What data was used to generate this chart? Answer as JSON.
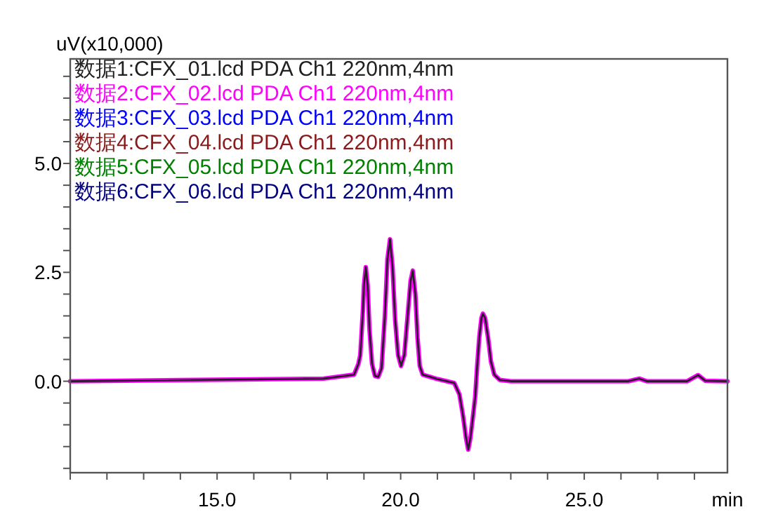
{
  "chart_data": {
    "type": "line",
    "ylabel": "uV(x10,000)",
    "xlabel": "min",
    "xlim": [
      11.0,
      28.9
    ],
    "ylim": [
      -2.1,
      7.4
    ],
    "xticks": [
      {
        "value": 11,
        "label": null
      },
      {
        "value": 12,
        "label": null
      },
      {
        "value": 13,
        "label": null
      },
      {
        "value": 14,
        "label": null
      },
      {
        "value": 15,
        "label": "15.0"
      },
      {
        "value": 16,
        "label": null
      },
      {
        "value": 17,
        "label": null
      },
      {
        "value": 18,
        "label": null
      },
      {
        "value": 19,
        "label": null
      },
      {
        "value": 20,
        "label": "20.0"
      },
      {
        "value": 21,
        "label": null
      },
      {
        "value": 22,
        "label": null
      },
      {
        "value": 23,
        "label": null
      },
      {
        "value": 24,
        "label": null
      },
      {
        "value": 25,
        "label": "25.0"
      },
      {
        "value": 26,
        "label": null
      },
      {
        "value": 27,
        "label": null
      },
      {
        "value": 28,
        "label": null
      }
    ],
    "yticks": [
      {
        "value": -2.0,
        "label": null
      },
      {
        "value": -1.5,
        "label": null
      },
      {
        "value": -1.0,
        "label": null
      },
      {
        "value": -0.5,
        "label": null
      },
      {
        "value": 0,
        "label": "0.0"
      },
      {
        "value": 0.5,
        "label": null
      },
      {
        "value": 1.0,
        "label": null
      },
      {
        "value": 1.5,
        "label": null
      },
      {
        "value": 2.0,
        "label": null
      },
      {
        "value": 2.5,
        "label": "2.5"
      },
      {
        "value": 3.0,
        "label": null
      },
      {
        "value": 3.5,
        "label": null
      },
      {
        "value": 4.0,
        "label": null
      },
      {
        "value": 4.5,
        "label": null
      },
      {
        "value": 5.0,
        "label": "5.0"
      },
      {
        "value": 5.5,
        "label": null
      },
      {
        "value": 6.0,
        "label": null
      },
      {
        "value": 6.5,
        "label": null
      },
      {
        "value": 7.0,
        "label": null
      }
    ],
    "x": [
      11.0,
      17.9,
      18.73,
      18.85,
      18.9,
      18.97,
      19.0,
      19.05,
      19.1,
      19.15,
      19.22,
      19.3,
      19.39,
      19.48,
      19.57,
      19.64,
      19.71,
      19.78,
      19.85,
      19.93,
      20.01,
      20.1,
      20.2,
      20.27,
      20.33,
      20.4,
      20.46,
      20.52,
      20.6,
      20.8,
      21.0,
      21.46,
      21.6,
      21.7,
      21.78,
      21.84,
      21.9,
      21.97,
      22.03,
      22.08,
      22.14,
      22.2,
      22.24,
      22.3,
      22.38,
      22.46,
      22.55,
      22.7,
      23.0,
      26.2,
      26.5,
      26.7,
      27.8,
      28.1,
      28.3,
      28.9
    ],
    "series": [
      {
        "name": "数据1:CFX_01.lcd PDA Ch1 220nm,4nm",
        "color": "#202020",
        "values": [
          0,
          0.06,
          0.15,
          0.4,
          0.6,
          1.6,
          2.2,
          2.62,
          2.2,
          1.2,
          0.4,
          0.12,
          0.1,
          0.3,
          1.5,
          2.8,
          3.26,
          2.6,
          1.4,
          0.6,
          0.35,
          0.6,
          1.6,
          2.3,
          2.54,
          2.0,
          1.0,
          0.35,
          0.15,
          0.1,
          0.05,
          -0.04,
          -0.3,
          -0.8,
          -1.3,
          -1.57,
          -1.3,
          -0.8,
          -0.36,
          0.3,
          1.0,
          1.45,
          1.55,
          1.45,
          1.0,
          0.45,
          0.15,
          0.03,
          0,
          0,
          0.06,
          0,
          0,
          0.14,
          0.01,
          0
        ]
      },
      {
        "name": "数据2:CFX_02.lcd PDA Ch1 220nm,4nm",
        "color": "#ff00ff",
        "values": [
          0,
          0.06,
          0.15,
          0.4,
          0.6,
          1.6,
          2.2,
          2.62,
          2.2,
          1.2,
          0.4,
          0.12,
          0.1,
          0.3,
          1.5,
          2.8,
          3.26,
          2.6,
          1.4,
          0.6,
          0.35,
          0.6,
          1.6,
          2.3,
          2.54,
          2.0,
          1.0,
          0.35,
          0.15,
          0.1,
          0.05,
          -0.04,
          -0.3,
          -0.8,
          -1.3,
          -1.57,
          -1.3,
          -0.8,
          -0.36,
          0.3,
          1.0,
          1.45,
          1.55,
          1.45,
          1.0,
          0.45,
          0.15,
          0.03,
          0,
          0,
          0.06,
          0,
          0,
          0.14,
          0.01,
          0
        ]
      },
      {
        "name": "数据3:CFX_03.lcd PDA Ch1 220nm,4nm",
        "color": "#0000ff",
        "values": [
          null,
          null,
          null,
          null,
          null,
          null,
          null,
          null,
          null,
          null,
          null,
          null,
          null,
          null,
          null,
          null,
          null,
          null,
          null,
          null,
          null,
          null,
          null,
          null,
          null,
          null,
          null,
          null,
          null,
          null,
          null,
          null,
          null,
          null,
          null,
          null,
          null,
          null,
          null,
          null,
          null,
          null,
          null,
          null,
          null,
          null,
          null,
          null,
          null,
          null,
          null,
          null,
          null,
          null,
          null,
          null
        ]
      },
      {
        "name": "数据4:CFX_04.lcd PDA Ch1 220nm,4nm",
        "color": "#8b1a1a",
        "values": [
          null,
          null,
          null,
          null,
          null,
          null,
          null,
          null,
          null,
          null,
          null,
          null,
          null,
          null,
          null,
          null,
          null,
          null,
          null,
          null,
          null,
          null,
          null,
          null,
          null,
          null,
          null,
          null,
          null,
          null,
          null,
          null,
          null,
          null,
          null,
          null,
          null,
          null,
          null,
          null,
          null,
          null,
          null,
          null,
          null,
          null,
          null,
          null,
          null,
          null,
          null,
          null,
          null,
          null,
          null,
          null
        ]
      },
      {
        "name": "数据5:CFX_05.lcd PDA Ch1 220nm,4nm",
        "color": "#008000",
        "values": [
          null,
          null,
          null,
          null,
          null,
          null,
          null,
          null,
          null,
          null,
          null,
          null,
          null,
          null,
          null,
          null,
          null,
          null,
          null,
          null,
          null,
          null,
          null,
          null,
          null,
          null,
          null,
          null,
          null,
          null,
          null,
          null,
          null,
          null,
          null,
          null,
          null,
          null,
          null,
          null,
          null,
          null,
          null,
          null,
          null,
          null,
          null,
          null,
          null,
          null,
          null,
          null,
          null,
          null,
          null,
          null
        ]
      },
      {
        "name": "数据6:CFX_06.lcd PDA Ch1 220nm,4nm",
        "color": "#000080",
        "values": [
          null,
          null,
          null,
          null,
          null,
          null,
          null,
          null,
          null,
          null,
          null,
          null,
          null,
          null,
          null,
          null,
          null,
          null,
          null,
          null,
          null,
          null,
          null,
          null,
          null,
          null,
          null,
          null,
          null,
          null,
          null,
          null,
          null,
          null,
          null,
          null,
          null,
          null,
          null,
          null,
          null,
          null,
          null,
          null,
          null,
          null,
          null,
          null,
          null,
          null,
          null,
          null,
          null,
          null,
          null,
          null
        ]
      }
    ],
    "legend": "top left",
    "grid": false,
    "marker": "none",
    "line_style": "solid"
  }
}
